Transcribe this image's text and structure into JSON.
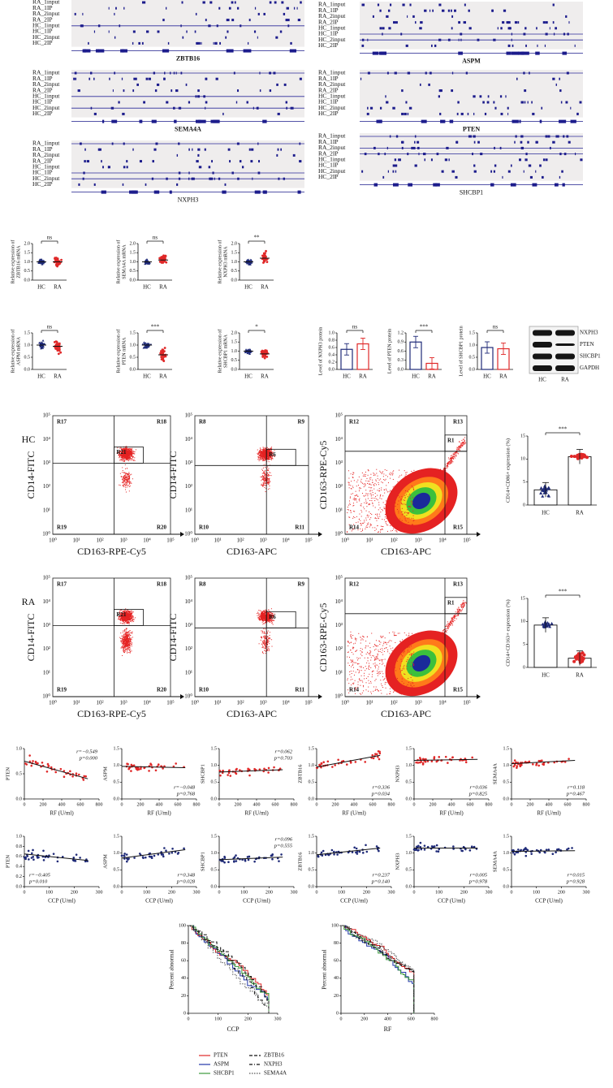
{
  "groups": [
    "HC",
    "RA"
  ],
  "igv_tracks": [
    "RA_1input",
    "RA_1IP",
    "RA_2input",
    "RA_2IP",
    "HC_1input",
    "HC_1IP",
    "HC_2input",
    "HC_2IP"
  ],
  "igv_genes": [
    "ZBTB16",
    "ASPM",
    "SEMA4A",
    "PTEN",
    "NXPH3",
    "SHCBP1"
  ],
  "mrna": [
    {
      "ylabel": [
        "Relative expression of",
        "ZBTB16 mRNA"
      ],
      "yticks": [
        "0.0",
        "0.5",
        "1.0",
        "1.5",
        "2.0"
      ],
      "sig": "ns",
      "means": [
        1.0,
        1.0
      ]
    },
    {
      "ylabel": [
        "Relative expression of",
        "SEMA4A mRNA"
      ],
      "yticks": [
        "0.0",
        "0.5",
        "1.0",
        "1.5",
        "2.0"
      ],
      "sig": "ns",
      "means": [
        1.0,
        1.1
      ]
    },
    {
      "ylabel": [
        "Relative expression of",
        "NXPH3 mRNA"
      ],
      "yticks": [
        "0.0",
        "0.5",
        "1.0",
        "1.5",
        "2.0"
      ],
      "sig": "**",
      "means": [
        1.0,
        1.2
      ]
    },
    {
      "ylabel": [
        "Relative expression of",
        "ASPM mRNA"
      ],
      "yticks": [
        "0.0",
        "0.5",
        "1.0",
        "1.5"
      ],
      "sig": "ns",
      "means": [
        1.0,
        0.95
      ]
    },
    {
      "ylabel": [
        "Relative expression of",
        "PTEN mRNA"
      ],
      "yticks": [
        "0.0",
        "0.5",
        "1.0",
        "1.5"
      ],
      "sig": "***",
      "means": [
        1.0,
        0.6
      ]
    },
    {
      "ylabel": [
        "Relative expression of",
        "SHCBP1 mRNA"
      ],
      "yticks": [
        "0.0",
        "0.5",
        "1.0",
        "1.5",
        "2.0"
      ],
      "sig": "*",
      "means": [
        1.0,
        0.85
      ]
    }
  ],
  "protein": [
    {
      "ylabel": "Level of NXPH3 protein",
      "yticks": [
        "0.0",
        "0.2",
        "0.4",
        "0.6",
        "0.8",
        "1.0"
      ],
      "sig": "ns",
      "means": [
        0.55,
        0.7
      ]
    },
    {
      "ylabel": "Level of PTEN protein",
      "yticks": [
        "0.0",
        "0.3",
        "0.6",
        "0.9",
        "1.2"
      ],
      "sig": "***",
      "means": [
        0.9,
        0.2
      ]
    },
    {
      "ylabel": "Level of SHCBP1 protein",
      "yticks": [
        "0.0",
        "0.5",
        "1.0",
        "1.5"
      ],
      "sig": "ns",
      "means": [
        0.9,
        0.85
      ]
    }
  ],
  "western": {
    "bands": [
      "NXPH3",
      "PTEN",
      "SHCBP1",
      "GAPDH"
    ]
  },
  "flow_ticks": [
    "10⁰",
    "10¹",
    "10²",
    "10³",
    "10⁴",
    "10⁵"
  ],
  "flow": [
    {
      "group": "HC",
      "plots": [
        {
          "regions": [
            "R17",
            "R18",
            "R21",
            "R19",
            "R20"
          ],
          "xlabel": "CD163-RPE-Cy5",
          "ylabel": "CD14-FITC"
        },
        {
          "regions": [
            "R8",
            "R9",
            "R6",
            "R10",
            "R11"
          ],
          "xlabel": "CD163-APC",
          "ylabel": "CD14-FITC"
        },
        {
          "regions": [
            "R12",
            "R13",
            "R1",
            "R14",
            "R15"
          ],
          "xlabel": "CD163-APC",
          "ylabel": "CD163-RPE-Cy5"
        }
      ],
      "summary": {
        "ylabel": "CD14+CD86+ expression (%)",
        "yticks": [
          0,
          5,
          10,
          15
        ],
        "sig": "***",
        "means": [
          3.3,
          10.5
        ]
      }
    },
    {
      "group": "RA",
      "plots": [
        {
          "regions": [
            "R17",
            "R18",
            "R21",
            "R19",
            "R20"
          ],
          "xlabel": "CD163-RPE-Cy5",
          "ylabel": "CD14-FITC"
        },
        {
          "regions": [
            "R8",
            "R9",
            "R6",
            "R10",
            "R11"
          ],
          "xlabel": "CD163-APC",
          "ylabel": "CD14-FITC"
        },
        {
          "regions": [
            "R12",
            "R13",
            "R1",
            "R14",
            "R15"
          ],
          "xlabel": "CD163-APC",
          "ylabel": "CD163-RPE-Cy5"
        }
      ],
      "summary": {
        "ylabel": "CD14+CD163+ expression (%)",
        "yticks": [
          0,
          5,
          10,
          15
        ],
        "sig": "***",
        "means": [
          9.2,
          2.0
        ]
      }
    }
  ],
  "correlation": [
    {
      "xlabel": "RF (U/ml)",
      "xticks": [
        0,
        200,
        400,
        600,
        800
      ],
      "color": "#e02828",
      "panels": [
        {
          "gene": "PTEN",
          "yticks": [
            "0.0",
            "0.5",
            "1.0"
          ],
          "r": "r=−0.549",
          "p": "p=0.000",
          "fit": [
            0.75,
            0.4
          ],
          "text_pos": "top"
        },
        {
          "gene": "ASPM",
          "yticks": [
            "0.0",
            "0.5",
            "1.0",
            "1.5"
          ],
          "r": "r=−0.048",
          "p": "p=0.768",
          "fit": [
            0.97,
            0.93
          ],
          "text_pos": "bottom"
        },
        {
          "gene": "SHCBP1",
          "yticks": [
            "0.0",
            "0.5",
            "1.0",
            "1.5"
          ],
          "r": "r=0.062",
          "p": "p=0.703",
          "fit": [
            0.8,
            0.87
          ],
          "text_pos": "top"
        },
        {
          "gene": "ZBTB16",
          "yticks": [
            "0.0",
            "0.5",
            "1.0",
            "1.5"
          ],
          "r": "r=0.336",
          "p": "p=0.034",
          "fit": [
            0.95,
            1.3
          ],
          "text_pos": "bottom"
        },
        {
          "gene": "NXPH3",
          "yticks": [
            "0.0",
            "0.5",
            "1.0",
            "1.5"
          ],
          "r": "r=0.036",
          "p": "p=0.825",
          "fit": [
            1.15,
            1.18
          ],
          "text_pos": "bottom"
        },
        {
          "gene": "SEMA4A",
          "yticks": [
            "0.0",
            "0.5",
            "1.0",
            "1.5"
          ],
          "r": "r=0.118",
          "p": "p=0.467",
          "fit": [
            1.05,
            1.15
          ],
          "text_pos": "bottom"
        }
      ]
    },
    {
      "xlabel": "CCP (U/ml)",
      "xticks": [
        0,
        100,
        200,
        300
      ],
      "color": "#1f2a78",
      "panels": [
        {
          "gene": "PTEN",
          "yticks": [
            "0.0",
            "0.2",
            "0.4",
            "0.6",
            "0.8",
            "1.0"
          ],
          "r": "r=−0.405",
          "p": "p=0.010",
          "fit": [
            0.65,
            0.52
          ],
          "text_pos": "bottom-left"
        },
        {
          "gene": "ASPM",
          "yticks": [
            "0.0",
            "0.5",
            "1.0",
            "1.5"
          ],
          "r": "r=0.348",
          "p": "p=0.028",
          "fit": [
            0.85,
            1.1
          ],
          "text_pos": "bottom"
        },
        {
          "gene": "SHCBP1",
          "yticks": [
            "0.0",
            "0.5",
            "1.0",
            "1.5"
          ],
          "r": "r=0.096",
          "p": "p=0.555",
          "fit": [
            0.8,
            0.88
          ],
          "text_pos": "top"
        },
        {
          "gene": "ZBTB16",
          "yticks": [
            "0.0",
            "0.5",
            "1.0",
            "1.5"
          ],
          "r": "r=0.237",
          "p": "p=0.140",
          "fit": [
            0.95,
            1.15
          ],
          "text_pos": "bottom"
        },
        {
          "gene": "NXPH3",
          "yticks": [
            "0.0",
            "0.5",
            "1.0",
            "1.5"
          ],
          "r": "r=0.005",
          "p": "p=0.978",
          "fit": [
            1.15,
            1.15
          ],
          "text_pos": "bottom"
        },
        {
          "gene": "SEMA4A",
          "yticks": [
            "0.0",
            "0.5",
            "1.0",
            "1.5"
          ],
          "r": "r=0.015",
          "p": "p=0.928",
          "fit": [
            1.05,
            1.07
          ],
          "text_pos": "bottom"
        }
      ]
    }
  ],
  "cumulative": {
    "ylabel": "Percent abnormal",
    "yticks": [
      0,
      20,
      40,
      60,
      80,
      100
    ],
    "panels": [
      {
        "xlabel": "CCP",
        "xticks": [
          0,
          100,
          200,
          300
        ]
      },
      {
        "xlabel": "RF",
        "xticks": [
          0,
          200,
          400,
          600,
          800
        ]
      }
    ],
    "legend": [
      {
        "name": "PTEN",
        "color": "#e02828",
        "dash": "solid"
      },
      {
        "name": "ASPM",
        "color": "#2236a8",
        "dash": "solid"
      },
      {
        "name": "SHCBP1",
        "color": "#3a9a3a",
        "dash": "solid"
      },
      {
        "name": "ZBTB16",
        "color": "#111111",
        "dash": "dashed"
      },
      {
        "name": "NXPH3",
        "color": "#111111",
        "dash": "dash-dot"
      },
      {
        "name": "SEMA4A",
        "color": "#555555",
        "dash": "dotted"
      }
    ]
  }
}
